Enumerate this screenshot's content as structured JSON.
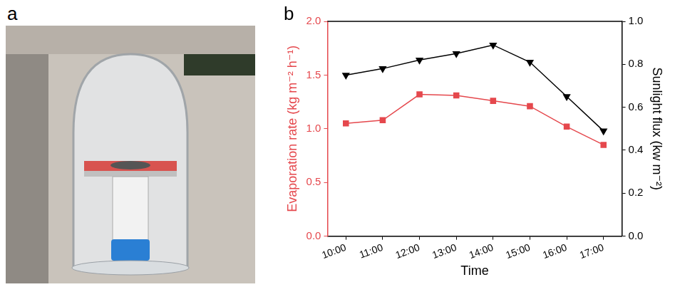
{
  "panel_labels": [
    "a",
    "b"
  ],
  "chart_data": {
    "type": "line",
    "categories": [
      "10:00",
      "11:00",
      "12:00",
      "13:00",
      "14:00",
      "15:00",
      "16:00",
      "17:00"
    ],
    "x_label": "Time",
    "y_label": "Evaporation rate (kg m⁻² h⁻¹)",
    "y2_label": "Sunlight flux (kw m⁻²)",
    "ylim": [
      0,
      2
    ],
    "yticks": [
      {
        "value": 0,
        "label": "0.0"
      },
      0.5,
      {
        "value": 1,
        "label": "1.0"
      },
      1.5,
      {
        "value": 2,
        "label": "2.0"
      }
    ],
    "y2lim": [
      0,
      1
    ],
    "y2ticks": [
      {
        "value": 0,
        "label": "0.0"
      },
      0.2,
      0.4,
      0.6,
      0.8,
      {
        "value": 1,
        "label": "1.0"
      }
    ],
    "grid": false,
    "series": [
      {
        "color": "#e5484d",
        "marker": "square",
        "values": [
          1.05,
          1.08,
          1.32,
          1.31,
          1.26,
          1.21,
          1.02,
          0.85
        ]
      },
      {
        "color": "#000000",
        "marker": "triangle-down",
        "axis": "y2",
        "values": [
          0.75,
          0.78,
          0.82,
          0.85,
          0.89,
          0.81,
          0.65,
          0.49
        ]
      }
    ]
  }
}
